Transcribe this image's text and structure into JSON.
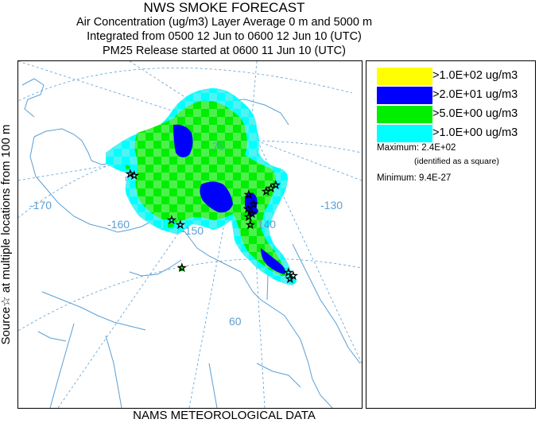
{
  "header": {
    "title": "NWS SMOKE FORECAST",
    "line1": "Air Concentration (ug/m3) Layer Average    0 m and  5000 m",
    "line2": "Integrated from 0500 12 Jun to 0600 12 Jun 10 (UTC)",
    "line3": "PM25 Release started at 0600 11 Jun 10 (UTC)"
  },
  "side_label": {
    "source": "Source",
    "star_glyph": "☆",
    "rest": " at multiple locations     from   100 m"
  },
  "footer": "NAMS METEOROLOGICAL DATA",
  "map": {
    "longitude_labels": [
      "-170",
      "-160",
      "-150",
      "-140",
      "-130"
    ],
    "latitude_labels": [
      "70",
      "60"
    ],
    "graticule_color": "#5a9fd4",
    "coast_color": "#5a9fd4"
  },
  "legend": {
    "items": [
      {
        "label": ">1.0E+02 ug/m3",
        "color": "#ffff00"
      },
      {
        "label": ">2.0E+01 ug/m3",
        "color": "#0000ff"
      },
      {
        "label": ">5.0E+00 ug/m3",
        "color": "#00ee00"
      },
      {
        "label": ">1.0E+00 ug/m3",
        "color": "#00ffff"
      }
    ],
    "maximum_label": "Maximum:",
    "maximum_value": "2.4E+02",
    "maximum_note": "(identified as a square)",
    "minimum_label": "Minimum:",
    "minimum_value": "9.4E-27"
  }
}
